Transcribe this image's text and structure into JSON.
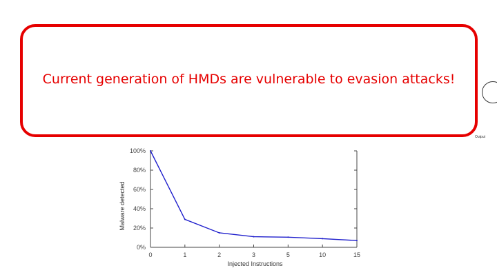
{
  "callout": {
    "text": "Current generation of HMDs are vulnerable to evasion attacks!",
    "color": "#e60000"
  },
  "side_label": "Output",
  "chart_data": {
    "type": "line",
    "x": [
      0,
      1,
      2,
      3,
      5,
      10,
      15
    ],
    "x_tick_labels": [
      "0",
      "1",
      "2",
      "3",
      "5",
      "10",
      "15"
    ],
    "series": [
      {
        "values": [
          100,
          29,
          15,
          11,
          10.5,
          9,
          7
        ],
        "color": "#1f1fcc"
      }
    ],
    "y_ticks": [
      0,
      20,
      40,
      60,
      80,
      100
    ],
    "y_tick_labels": [
      "0%",
      "20%",
      "40%",
      "60%",
      "80%",
      "100%"
    ],
    "xlabel": "Injected Instructions",
    "ylabel": "Malware detected",
    "ylim": [
      0,
      100
    ],
    "grid": false
  }
}
